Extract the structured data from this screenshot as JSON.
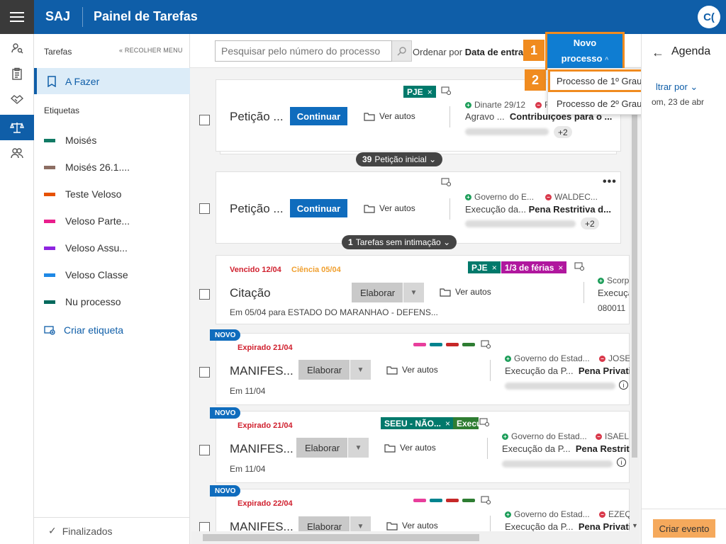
{
  "header": {
    "brand": "SAJ",
    "title": "Painel de Tarefas",
    "avatar": "C("
  },
  "sidebar": {
    "section": "Tarefas",
    "collapse": "« RECOLHER MENU",
    "active_item": "A Fazer",
    "tags_title": "Etiquetas",
    "tags": [
      {
        "label": "Moisés",
        "color": "#117a65"
      },
      {
        "label": "Moisés 26.1....",
        "color": "#8d6e63"
      },
      {
        "label": "Teste Veloso",
        "color": "#e65100"
      },
      {
        "label": "Veloso Parte...",
        "color": "#e91e8c"
      },
      {
        "label": "Veloso Assu...",
        "color": "#8e24e0"
      },
      {
        "label": "Veloso Classe",
        "color": "#1e88e5"
      },
      {
        "label": "Nu processo",
        "color": "#00695c"
      }
    ],
    "create_tag": "Criar etiqueta",
    "finished": "Finalizados"
  },
  "toolbar": {
    "search_placeholder": "Pesquisar pelo número do processo",
    "order_prefix": "Ordenar por",
    "order_value": "Data de entrada"
  },
  "novo_processo": {
    "label_line1": "Novo",
    "label_line2": "processo",
    "menu": [
      "Processo de 1º Grau",
      "Processo de 2º Grau"
    ],
    "steps": [
      "1",
      "2"
    ]
  },
  "agenda": {
    "title": "Agenda",
    "filter": "ltrar por",
    "date": "om, 23 de abr",
    "create": "Criar evento"
  },
  "cards": [
    {
      "title": "Petição ...",
      "action": "Continuar",
      "autos": "Ver autos",
      "chips": [
        {
          "label": "PJE",
          "color": "#00796b"
        }
      ],
      "party_a": "Dinarte 29/12",
      "party_b": "F",
      "line2_class": "Agravo ...",
      "line2_subject": "Contribuições para o ...",
      "more": "+2",
      "group_count": "39",
      "group_label": "Petição inicial"
    },
    {
      "title": "Petição ...",
      "action": "Continuar",
      "autos": "Ver autos",
      "party_a": "Governo do E...",
      "party_b": "WALDEC...",
      "line2_class": "Execução da...",
      "line2_subject": "Pena Restritiva d...",
      "more": "+2",
      "group_count": "1",
      "group_label": "Tarefas sem intimação"
    },
    {
      "title": "Citação",
      "due": "Vencido 12/04",
      "science": "Ciência 05/04",
      "action": "Elaborar",
      "autos": "Ver autos",
      "chips": [
        {
          "label": "PJE",
          "color": "#00796b"
        },
        {
          "label": "1/3 de férias",
          "color": "#b0179e"
        }
      ],
      "party_a": "Scorp",
      "line2_class": "Execuçã",
      "process_partial": "080011",
      "note": "Em 05/04 para ESTADO DO MARANHAO - DEFENS..."
    },
    {
      "badge": "NOVO",
      "due": "Expirado 21/04",
      "title": "MANIFES...",
      "action": "Elaborar",
      "autos": "Ver autos",
      "party_a": "Governo do Estad...",
      "party_b": "JOSE",
      "line2_class": "Execução da P...",
      "line2_subject": "Pena Privativ",
      "date": "Em 11/04",
      "bars": [
        "#e83e9c",
        "#00838f",
        "#c62828",
        "#2e7d32"
      ]
    },
    {
      "badge": "NOVO",
      "due": "Expirado 21/04",
      "title": "MANIFES...",
      "action": "Elaborar",
      "autos": "Ver autos",
      "chips": [
        {
          "label": "SEEU - NÃO...",
          "color": "#00796b"
        },
        {
          "label": "Execu",
          "color": "#2e7d32"
        }
      ],
      "party_a": "Governo do Estad...",
      "party_b": "ISAEL",
      "line2_class": "Execução da P...",
      "line2_subject": "Pena Restritiv",
      "date": "Em 11/04"
    },
    {
      "badge": "NOVO",
      "due": "Expirado 22/04",
      "title": "MANIFES...",
      "action": "Elaborar",
      "autos": "Ver autos",
      "party_a": "Governo do Estad...",
      "party_b": "EZEQ",
      "line2_class": "Execução da P...",
      "line2_subject": "Pena Privativ",
      "bars": [
        "#e83e9c",
        "#00838f",
        "#c62828",
        "#2e7d32"
      ]
    }
  ]
}
